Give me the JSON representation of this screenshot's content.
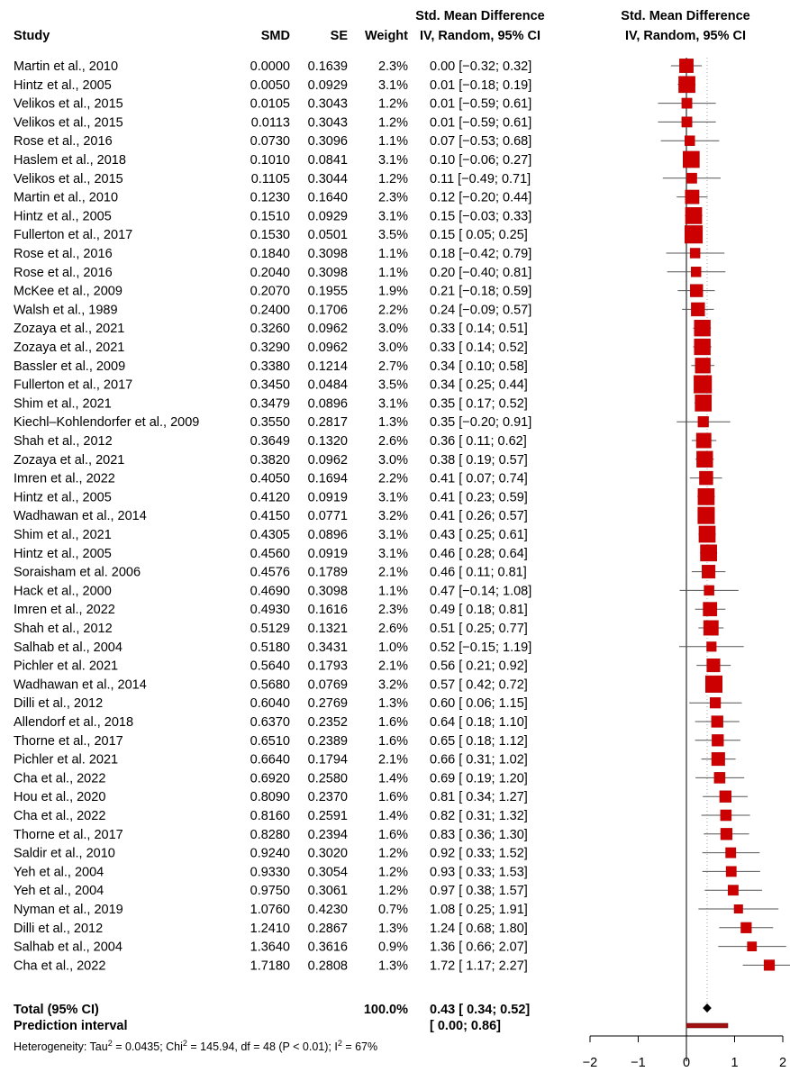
{
  "chart_data": {
    "type": "forest",
    "headers": {
      "study": "Study",
      "smd": "SMD",
      "se": "SE",
      "weight": "Weight",
      "ci_line1": "Std. Mean Difference",
      "ci_line2": "IV, Random, 95% CI",
      "plot_line1": "Std. Mean Difference",
      "plot_line2": "IV, Random, 95% CI"
    },
    "studies": [
      {
        "study": "Martin et al., 2010",
        "smd": "0.0000",
        "se": "0.1639",
        "weight": "2.3%",
        "ci": "0.00 [−0.32; 0.32]",
        "est": 0.0,
        "lo": -0.32,
        "hi": 0.32,
        "w": 2.3
      },
      {
        "study": "Hintz et al., 2005",
        "smd": "0.0050",
        "se": "0.0929",
        "weight": "3.1%",
        "ci": "0.01 [−0.18; 0.19]",
        "est": 0.01,
        "lo": -0.18,
        "hi": 0.19,
        "w": 3.1
      },
      {
        "study": "Velikos et al., 2015",
        "smd": "0.0105",
        "se": "0.3043",
        "weight": "1.2%",
        "ci": "0.01 [−0.59; 0.61]",
        "est": 0.01,
        "lo": -0.59,
        "hi": 0.61,
        "w": 1.2
      },
      {
        "study": "Velikos et al., 2015",
        "smd": "0.0113",
        "se": "0.3043",
        "weight": "1.2%",
        "ci": "0.01 [−0.59; 0.61]",
        "est": 0.01,
        "lo": -0.59,
        "hi": 0.61,
        "w": 1.2
      },
      {
        "study": "Rose et al., 2016",
        "smd": "0.0730",
        "se": "0.3096",
        "weight": "1.1%",
        "ci": "0.07 [−0.53; 0.68]",
        "est": 0.07,
        "lo": -0.53,
        "hi": 0.68,
        "w": 1.1
      },
      {
        "study": "Haslem et al., 2018",
        "smd": "0.1010",
        "se": "0.0841",
        "weight": "3.1%",
        "ci": "0.10 [−0.06; 0.27]",
        "est": 0.1,
        "lo": -0.06,
        "hi": 0.27,
        "w": 3.1
      },
      {
        "study": "Velikos et al., 2015",
        "smd": "0.1105",
        "se": "0.3044",
        "weight": "1.2%",
        "ci": "0.11 [−0.49; 0.71]",
        "est": 0.11,
        "lo": -0.49,
        "hi": 0.71,
        "w": 1.2
      },
      {
        "study": "Martin et al., 2010",
        "smd": "0.1230",
        "se": "0.1640",
        "weight": "2.3%",
        "ci": "0.12 [−0.20; 0.44]",
        "est": 0.12,
        "lo": -0.2,
        "hi": 0.44,
        "w": 2.3
      },
      {
        "study": "Hintz et al., 2005",
        "smd": "0.1510",
        "se": "0.0929",
        "weight": "3.1%",
        "ci": "0.15 [−0.03; 0.33]",
        "est": 0.15,
        "lo": -0.03,
        "hi": 0.33,
        "w": 3.1
      },
      {
        "study": "Fullerton et al., 2017",
        "smd": "0.1530",
        "se": "0.0501",
        "weight": "3.5%",
        "ci": "0.15 [ 0.05; 0.25]",
        "est": 0.15,
        "lo": 0.05,
        "hi": 0.25,
        "w": 3.5
      },
      {
        "study": "Rose et al., 2016",
        "smd": "0.1840",
        "se": "0.3098",
        "weight": "1.1%",
        "ci": "0.18 [−0.42; 0.79]",
        "est": 0.18,
        "lo": -0.42,
        "hi": 0.79,
        "w": 1.1
      },
      {
        "study": "Rose et al., 2016",
        "smd": "0.2040",
        "se": "0.3098",
        "weight": "1.1%",
        "ci": "0.20 [−0.40; 0.81]",
        "est": 0.2,
        "lo": -0.4,
        "hi": 0.81,
        "w": 1.1
      },
      {
        "study": "McKee et al., 2009",
        "smd": "0.2070",
        "se": "0.1955",
        "weight": "1.9%",
        "ci": "0.21 [−0.18; 0.59]",
        "est": 0.21,
        "lo": -0.18,
        "hi": 0.59,
        "w": 1.9
      },
      {
        "study": "Walsh et al., 1989",
        "smd": "0.2400",
        "se": "0.1706",
        "weight": "2.2%",
        "ci": "0.24 [−0.09; 0.57]",
        "est": 0.24,
        "lo": -0.09,
        "hi": 0.57,
        "w": 2.2
      },
      {
        "study": "Zozaya et al., 2021",
        "smd": "0.3260",
        "se": "0.0962",
        "weight": "3.0%",
        "ci": "0.33 [ 0.14; 0.51]",
        "est": 0.33,
        "lo": 0.14,
        "hi": 0.51,
        "w": 3.0
      },
      {
        "study": "Zozaya et al., 2021",
        "smd": "0.3290",
        "se": "0.0962",
        "weight": "3.0%",
        "ci": "0.33 [ 0.14; 0.52]",
        "est": 0.33,
        "lo": 0.14,
        "hi": 0.52,
        "w": 3.0
      },
      {
        "study": "Bassler et al., 2009",
        "smd": "0.3380",
        "se": "0.1214",
        "weight": "2.7%",
        "ci": "0.34 [ 0.10; 0.58]",
        "est": 0.34,
        "lo": 0.1,
        "hi": 0.58,
        "w": 2.7
      },
      {
        "study": "Fullerton et al., 2017",
        "smd": "0.3450",
        "se": "0.0484",
        "weight": "3.5%",
        "ci": "0.34 [ 0.25; 0.44]",
        "est": 0.34,
        "lo": 0.25,
        "hi": 0.44,
        "w": 3.5
      },
      {
        "study": "Shim et al., 2021",
        "smd": "0.3479",
        "se": "0.0896",
        "weight": "3.1%",
        "ci": "0.35 [ 0.17; 0.52]",
        "est": 0.35,
        "lo": 0.17,
        "hi": 0.52,
        "w": 3.1
      },
      {
        "study": "Kiechl–Kohlendorfer et al., 2009",
        "smd": "0.3550",
        "se": "0.2817",
        "weight": "1.3%",
        "ci": "0.35 [−0.20; 0.91]",
        "est": 0.35,
        "lo": -0.2,
        "hi": 0.91,
        "w": 1.3
      },
      {
        "study": "Shah et al., 2012",
        "smd": "0.3649",
        "se": "0.1320",
        "weight": "2.6%",
        "ci": "0.36 [ 0.11; 0.62]",
        "est": 0.36,
        "lo": 0.11,
        "hi": 0.62,
        "w": 2.6
      },
      {
        "study": "Zozaya et al., 2021",
        "smd": "0.3820",
        "se": "0.0962",
        "weight": "3.0%",
        "ci": "0.38 [ 0.19; 0.57]",
        "est": 0.38,
        "lo": 0.19,
        "hi": 0.57,
        "w": 3.0
      },
      {
        "study": "Imren et al., 2022",
        "smd": "0.4050",
        "se": "0.1694",
        "weight": "2.2%",
        "ci": "0.41 [ 0.07; 0.74]",
        "est": 0.41,
        "lo": 0.07,
        "hi": 0.74,
        "w": 2.2
      },
      {
        "study": "Hintz et al., 2005",
        "smd": "0.4120",
        "se": "0.0919",
        "weight": "3.1%",
        "ci": "0.41 [ 0.23; 0.59]",
        "est": 0.41,
        "lo": 0.23,
        "hi": 0.59,
        "w": 3.1
      },
      {
        "study": "Wadhawan et al., 2014",
        "smd": "0.4150",
        "se": "0.0771",
        "weight": "3.2%",
        "ci": "0.41 [ 0.26; 0.57]",
        "est": 0.41,
        "lo": 0.26,
        "hi": 0.57,
        "w": 3.2
      },
      {
        "study": "Shim et al., 2021",
        "smd": "0.4305",
        "se": "0.0896",
        "weight": "3.1%",
        "ci": "0.43 [ 0.25; 0.61]",
        "est": 0.43,
        "lo": 0.25,
        "hi": 0.61,
        "w": 3.1
      },
      {
        "study": "Hintz et al., 2005",
        "smd": "0.4560",
        "se": "0.0919",
        "weight": "3.1%",
        "ci": "0.46 [ 0.28; 0.64]",
        "est": 0.46,
        "lo": 0.28,
        "hi": 0.64,
        "w": 3.1
      },
      {
        "study": "Soraisham et al. 2006",
        "smd": "0.4576",
        "se": "0.1789",
        "weight": "2.1%",
        "ci": "0.46 [ 0.11; 0.81]",
        "est": 0.46,
        "lo": 0.11,
        "hi": 0.81,
        "w": 2.1
      },
      {
        "study": "Hack et al., 2000",
        "smd": "0.4690",
        "se": "0.3098",
        "weight": "1.1%",
        "ci": "0.47 [−0.14; 1.08]",
        "est": 0.47,
        "lo": -0.14,
        "hi": 1.08,
        "w": 1.1
      },
      {
        "study": "Imren et al., 2022",
        "smd": "0.4930",
        "se": "0.1616",
        "weight": "2.3%",
        "ci": "0.49 [ 0.18; 0.81]",
        "est": 0.49,
        "lo": 0.18,
        "hi": 0.81,
        "w": 2.3
      },
      {
        "study": "Shah et al., 2012",
        "smd": "0.5129",
        "se": "0.1321",
        "weight": "2.6%",
        "ci": "0.51 [ 0.25; 0.77]",
        "est": 0.51,
        "lo": 0.25,
        "hi": 0.77,
        "w": 2.6
      },
      {
        "study": "Salhab et al., 2004",
        "smd": "0.5180",
        "se": "0.3431",
        "weight": "1.0%",
        "ci": "0.52 [−0.15; 1.19]",
        "est": 0.52,
        "lo": -0.15,
        "hi": 1.19,
        "w": 1.0
      },
      {
        "study": "Pichler et al. 2021",
        "smd": "0.5640",
        "se": "0.1793",
        "weight": "2.1%",
        "ci": "0.56 [ 0.21; 0.92]",
        "est": 0.56,
        "lo": 0.21,
        "hi": 0.92,
        "w": 2.1
      },
      {
        "study": "Wadhawan et al., 2014",
        "smd": "0.5680",
        "se": "0.0769",
        "weight": "3.2%",
        "ci": "0.57 [ 0.42; 0.72]",
        "est": 0.57,
        "lo": 0.42,
        "hi": 0.72,
        "w": 3.2
      },
      {
        "study": "Dilli et al., 2012",
        "smd": "0.6040",
        "se": "0.2769",
        "weight": "1.3%",
        "ci": "0.60 [ 0.06; 1.15]",
        "est": 0.6,
        "lo": 0.06,
        "hi": 1.15,
        "w": 1.3
      },
      {
        "study": "Allendorf et al., 2018",
        "smd": "0.6370",
        "se": "0.2352",
        "weight": "1.6%",
        "ci": "0.64 [ 0.18; 1.10]",
        "est": 0.64,
        "lo": 0.18,
        "hi": 1.1,
        "w": 1.6
      },
      {
        "study": "Thorne et al., 2017",
        "smd": "0.6510",
        "se": "0.2389",
        "weight": "1.6%",
        "ci": "0.65 [ 0.18; 1.12]",
        "est": 0.65,
        "lo": 0.18,
        "hi": 1.12,
        "w": 1.6
      },
      {
        "study": "Pichler et al. 2021",
        "smd": "0.6640",
        "se": "0.1794",
        "weight": "2.1%",
        "ci": "0.66 [ 0.31; 1.02]",
        "est": 0.66,
        "lo": 0.31,
        "hi": 1.02,
        "w": 2.1
      },
      {
        "study": "Cha et al., 2022",
        "smd": "0.6920",
        "se": "0.2580",
        "weight": "1.4%",
        "ci": "0.69 [ 0.19; 1.20]",
        "est": 0.69,
        "lo": 0.19,
        "hi": 1.2,
        "w": 1.4
      },
      {
        "study": "Hou et al., 2020",
        "smd": "0.8090",
        "se": "0.2370",
        "weight": "1.6%",
        "ci": "0.81 [ 0.34; 1.27]",
        "est": 0.81,
        "lo": 0.34,
        "hi": 1.27,
        "w": 1.6
      },
      {
        "study": "Cha et al., 2022",
        "smd": "0.8160",
        "se": "0.2591",
        "weight": "1.4%",
        "ci": "0.82 [ 0.31; 1.32]",
        "est": 0.82,
        "lo": 0.31,
        "hi": 1.32,
        "w": 1.4
      },
      {
        "study": "Thorne et al., 2017",
        "smd": "0.8280",
        "se": "0.2394",
        "weight": "1.6%",
        "ci": "0.83 [ 0.36; 1.30]",
        "est": 0.83,
        "lo": 0.36,
        "hi": 1.3,
        "w": 1.6
      },
      {
        "study": "Saldir et al., 2010",
        "smd": "0.9240",
        "se": "0.3020",
        "weight": "1.2%",
        "ci": "0.92 [ 0.33; 1.52]",
        "est": 0.92,
        "lo": 0.33,
        "hi": 1.52,
        "w": 1.2
      },
      {
        "study": "Yeh et al., 2004",
        "smd": "0.9330",
        "se": "0.3054",
        "weight": "1.2%",
        "ci": "0.93 [ 0.33; 1.53]",
        "est": 0.93,
        "lo": 0.33,
        "hi": 1.53,
        "w": 1.2
      },
      {
        "study": "Yeh et al., 2004",
        "smd": "0.9750",
        "se": "0.3061",
        "weight": "1.2%",
        "ci": "0.97 [ 0.38; 1.57]",
        "est": 0.97,
        "lo": 0.38,
        "hi": 1.57,
        "w": 1.2
      },
      {
        "study": "Nyman et al., 2019",
        "smd": "1.0760",
        "se": "0.4230",
        "weight": "0.7%",
        "ci": "1.08 [ 0.25; 1.91]",
        "est": 1.08,
        "lo": 0.25,
        "hi": 1.91,
        "w": 0.7
      },
      {
        "study": "Dilli et al., 2012",
        "smd": "1.2410",
        "se": "0.2867",
        "weight": "1.3%",
        "ci": "1.24 [ 0.68; 1.80]",
        "est": 1.24,
        "lo": 0.68,
        "hi": 1.8,
        "w": 1.3
      },
      {
        "study": "Salhab et al., 2004",
        "smd": "1.3640",
        "se": "0.3616",
        "weight": "0.9%",
        "ci": "1.36 [ 0.66; 2.07]",
        "est": 1.36,
        "lo": 0.66,
        "hi": 2.07,
        "w": 0.9
      },
      {
        "study": "Cha et al., 2022",
        "smd": "1.7180",
        "se": "0.2808",
        "weight": "1.3%",
        "ci": "1.72 [ 1.17; 2.27]",
        "est": 1.72,
        "lo": 1.17,
        "hi": 2.27,
        "w": 1.3
      }
    ],
    "total": {
      "label": "Total (95% CI)",
      "weight": "100.0%",
      "ci": "0.43 [ 0.34; 0.52]",
      "est": 0.43,
      "lo": 0.34,
      "hi": 0.52
    },
    "prediction": {
      "label": "Prediction interval",
      "ci": "[ 0.00; 0.86]",
      "lo": 0.0,
      "hi": 0.86
    },
    "heterogeneity": {
      "prefix": "Heterogeneity: Tau",
      "tau_sup": "2",
      "mid1": " = 0.0435; Chi",
      "chi_sup": "2",
      "mid2": " = 145.94, df = 48 (P < 0.01); I",
      "i_sup": "2",
      "suffix": " = 67%"
    },
    "x_axis": {
      "ticks": [
        -2,
        -1,
        0,
        1,
        2
      ],
      "tick_labels": [
        "−2",
        "−1",
        "0",
        "1",
        "2"
      ],
      "range": [
        -2,
        2
      ]
    },
    "colors": {
      "box": "#cc0000",
      "box_edge": "#b00000",
      "ci_line": "#555555",
      "diamond": "#000000",
      "prediction": "#a11111",
      "axis": "#000000",
      "ref_dotted": "#aaaaaa"
    }
  }
}
